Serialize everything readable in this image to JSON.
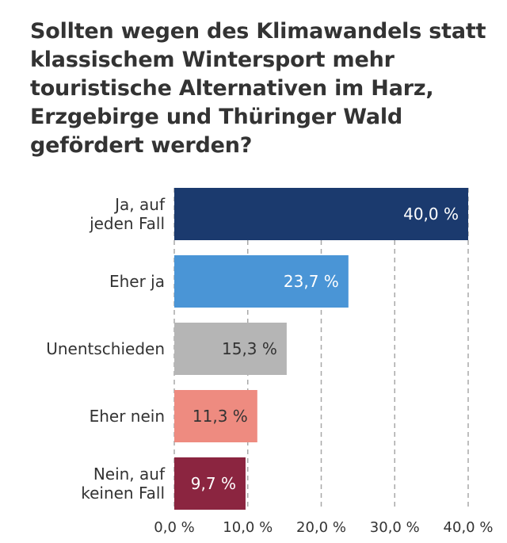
{
  "chart_data": {
    "type": "bar",
    "orientation": "horizontal",
    "title": "Sollten wegen des Klimawandels statt klassischem Wintersport mehr touristische Alternativen im Harz, Erzgebirge und Thüringer Wald gefördert werden?",
    "categories": [
      [
        "Ja, auf",
        "jeden Fall"
      ],
      [
        "Eher ja"
      ],
      [
        "Unentschieden"
      ],
      [
        "Eher nein"
      ],
      [
        "Nein, auf",
        "keinen Fall"
      ]
    ],
    "values": [
      40.0,
      23.7,
      15.3,
      11.3,
      9.7
    ],
    "value_labels": [
      "40,0 %",
      "23,7 %",
      "15,3 %",
      "11,3 %",
      "9,7 %"
    ],
    "bar_colors": [
      "#1b3a6e",
      "#4a95d6",
      "#b5b5b5",
      "#ee8b80",
      "#8b2540"
    ],
    "value_label_colors": [
      "#ffffff",
      "#ffffff",
      "#333333",
      "#333333",
      "#ffffff"
    ],
    "ticks": [
      0,
      10,
      20,
      30,
      40
    ],
    "tick_labels": [
      "0,0 %",
      "10,0 %",
      "20,0 %",
      "30,0 %",
      "40,0 %"
    ],
    "xlim": [
      0,
      40
    ],
    "grid": "vertical dashed",
    "xlabel": "",
    "ylabel": ""
  }
}
